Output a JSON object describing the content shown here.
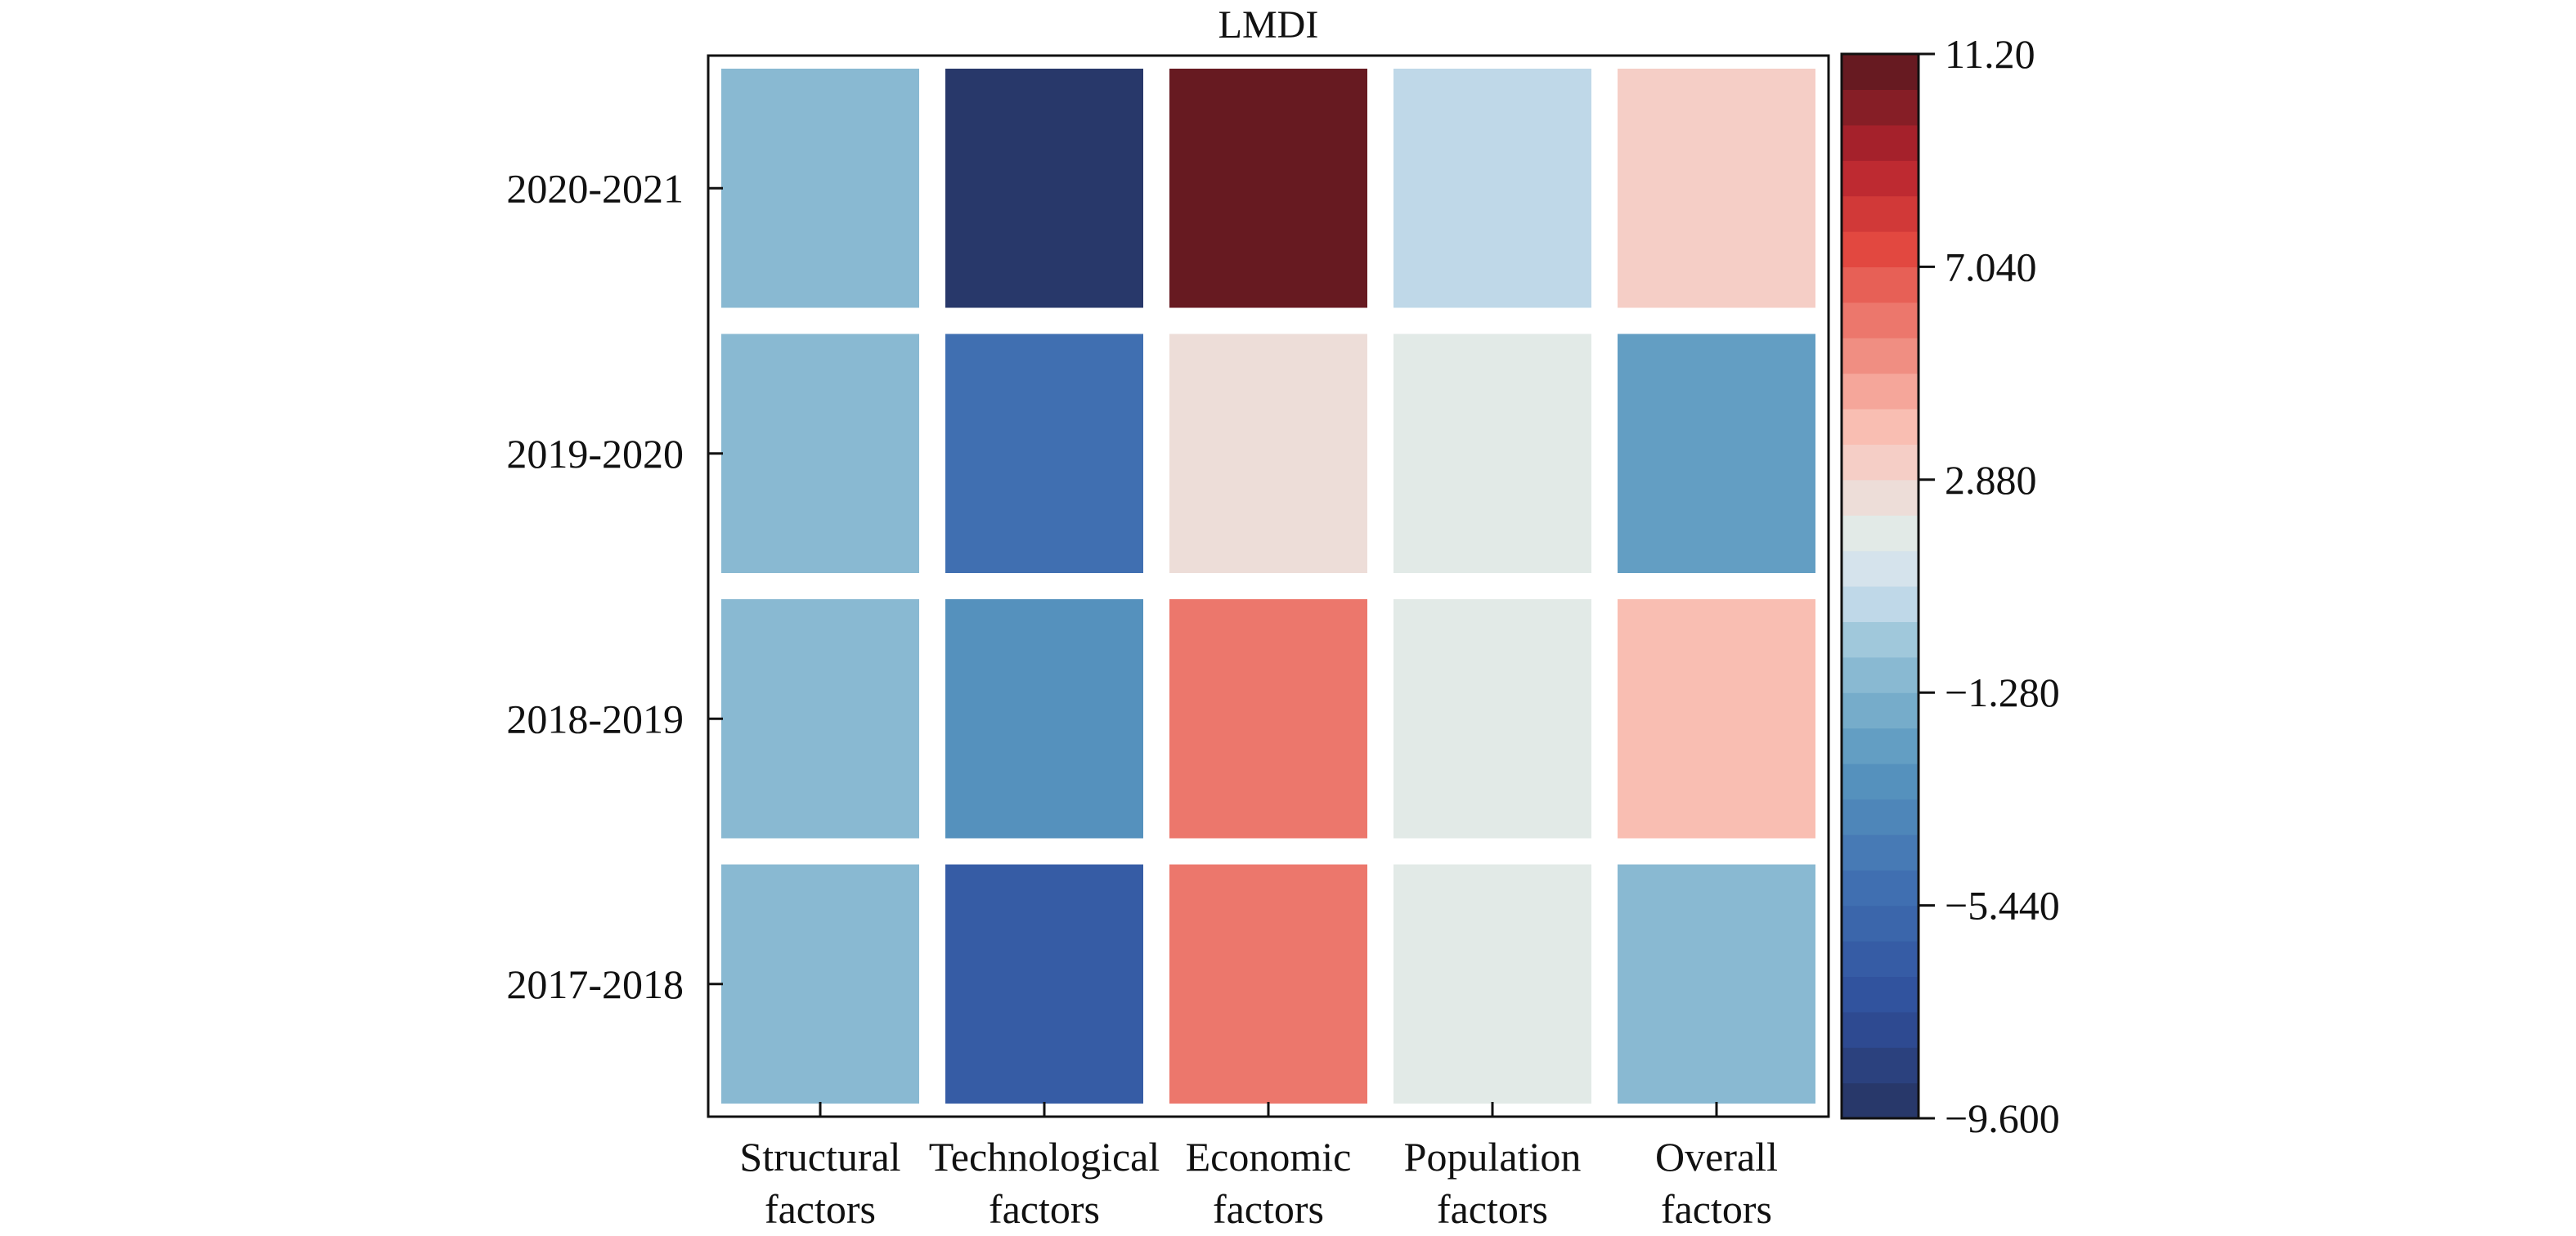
{
  "chart_data": {
    "type": "heatmap",
    "title": "LMDI",
    "rows": [
      "2020-2021",
      "2019-2020",
      "2018-2019",
      "2017-2018"
    ],
    "columns": [
      [
        "Structural",
        "factors"
      ],
      [
        "Technological",
        "factors"
      ],
      [
        "Economic",
        "factors"
      ],
      [
        "Population",
        "factors"
      ],
      [
        "Overall",
        "factors"
      ]
    ],
    "values": [
      [
        -0.8,
        -9.3,
        11.0,
        0.5,
        3.3
      ],
      [
        -0.8,
        -4.8,
        2.5,
        1.5,
        -2.3
      ],
      [
        -0.8,
        -2.7,
        5.7,
        1.5,
        3.9
      ],
      [
        -0.8,
        -6.2,
        5.8,
        1.5,
        -0.8
      ]
    ],
    "colorbar": {
      "min": -9.6,
      "max": 11.2,
      "ticks": [
        11.2,
        7.04,
        2.88,
        -1.28,
        -5.44,
        -9.6
      ],
      "tick_labels": [
        "11.20",
        "7.040",
        "2.880",
        "−1.280",
        "−5.440",
        "−9.600"
      ],
      "levels": 30,
      "colormap": "RdBu_r"
    },
    "grid": false,
    "legend": "right"
  }
}
